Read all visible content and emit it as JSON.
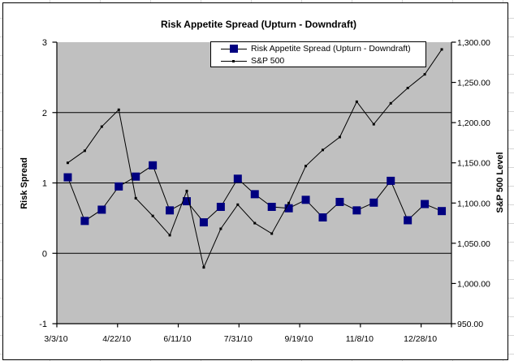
{
  "chart_data": {
    "type": "line",
    "title": "Risk Appetite Spread (Upturn - Downdraft)",
    "plot_background": "#C0C0C0",
    "grid_on": true,
    "legend_position": "top-center",
    "x_axis": {
      "kind": "date",
      "start_label": "3/3/10",
      "tick_labels": [
        "3/3/10",
        "4/22/10",
        "6/11/10",
        "7/31/10",
        "9/19/10",
        "11/8/10",
        "12/28/10"
      ],
      "tick_interval_days": 50,
      "axis_span_days": 325
    },
    "y_axis_left": {
      "title": "Risk Spread",
      "min": -1,
      "max": 3,
      "tick_labels": [
        "3",
        "2",
        "1",
        "0",
        "-1"
      ],
      "tick_values": [
        3,
        2,
        1,
        0,
        -1
      ],
      "gridlines_at": [
        2,
        1,
        0
      ]
    },
    "y_axis_right": {
      "title": "S&P 500 Level",
      "min": 950,
      "max": 1300,
      "tick_labels": [
        "1,300.00",
        "1,250.00",
        "1,200.00",
        "1,150.00",
        "1,100.00",
        "1,050.00",
        "1,000.00",
        "950.00"
      ],
      "tick_values": [
        1300,
        1250,
        1200,
        1150,
        1100,
        1050,
        1000,
        950
      ]
    },
    "series": [
      {
        "name": "Risk Appetite Spread (Upturn - Downdraft)",
        "axis": "left",
        "line_color": "#000000",
        "marker": {
          "shape": "square",
          "color": "#000080",
          "size": 10
        },
        "day_offsets": [
          9,
          23,
          37,
          51,
          65,
          79,
          93,
          107,
          121,
          135,
          149,
          163,
          177,
          191,
          205,
          219,
          233,
          247,
          261,
          275,
          289,
          303,
          317
        ],
        "dates_estimated": [
          "3/12/10",
          "3/26/10",
          "4/9/10",
          "4/23/10",
          "5/7/10",
          "5/21/10",
          "6/4/10",
          "6/18/10",
          "7/2/10",
          "7/16/10",
          "7/30/10",
          "8/13/10",
          "8/27/10",
          "9/10/10",
          "9/24/10",
          "10/8/10",
          "10/22/10",
          "11/5/10",
          "11/19/10",
          "12/3/10",
          "12/17/10",
          "12/31/10",
          "1/14/11"
        ],
        "values": [
          1.08,
          0.46,
          0.62,
          0.95,
          1.09,
          1.25,
          0.61,
          0.74,
          0.44,
          0.66,
          1.06,
          0.84,
          0.66,
          0.64,
          0.76,
          0.51,
          0.73,
          0.61,
          0.72,
          1.03,
          0.47,
          0.7,
          0.6
        ]
      },
      {
        "name": "S&P 500",
        "axis": "right",
        "line_color": "#000000",
        "marker": {
          "shape": "dot",
          "color": "#000000",
          "size": 3
        },
        "day_offsets": [
          9,
          23,
          37,
          51,
          65,
          79,
          93,
          107,
          121,
          135,
          149,
          163,
          177,
          191,
          205,
          219,
          233,
          247,
          261,
          275,
          289,
          303,
          317
        ],
        "dates_estimated": [
          "3/12/10",
          "3/26/10",
          "4/9/10",
          "4/23/10",
          "5/7/10",
          "5/21/10",
          "6/4/10",
          "6/18/10",
          "7/2/10",
          "7/16/10",
          "7/30/10",
          "8/13/10",
          "8/27/10",
          "9/10/10",
          "9/24/10",
          "10/8/10",
          "10/22/10",
          "11/5/10",
          "11/19/10",
          "12/3/10",
          "12/17/10",
          "12/31/10",
          "1/14/11"
        ],
        "values": [
          1150,
          1165,
          1195,
          1216,
          1106,
          1084,
          1060,
          1115,
          1020,
          1068,
          1098,
          1075,
          1062,
          1100,
          1146,
          1166,
          1182,
          1226,
          1198,
          1224,
          1243,
          1260,
          1291
        ]
      }
    ]
  }
}
